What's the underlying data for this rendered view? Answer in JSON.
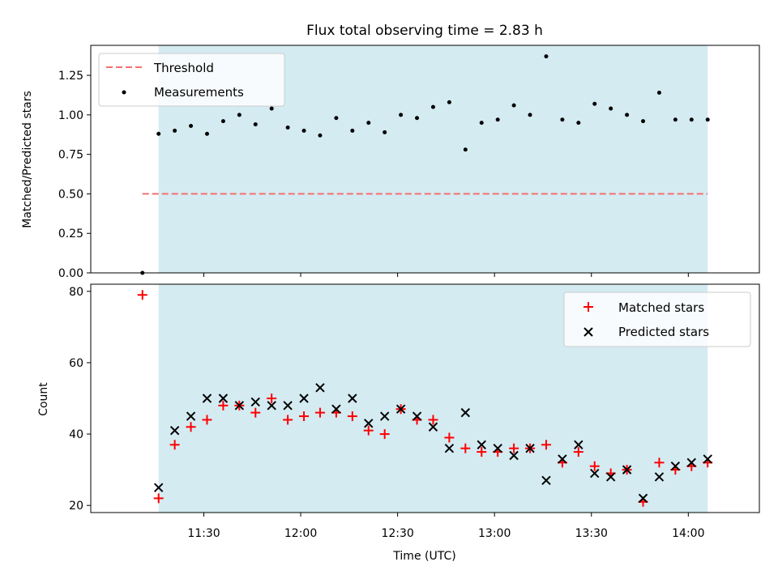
{
  "chart_data": [
    {
      "type": "scatter",
      "title": "Flux total observing time = 2.83 h",
      "xlabel": "",
      "ylabel": "Matched/Predicted stars",
      "ylim": [
        0,
        1.44
      ],
      "yticks": [
        "0.00",
        "0.25",
        "0.50",
        "0.75",
        "1.00",
        "1.25"
      ],
      "ytick_values": [
        0,
        0.25,
        0.5,
        0.75,
        1.0,
        1.25
      ],
      "shaded_region": {
        "start_min": 676,
        "end_min": 846,
        "color": "#d4ebf2"
      },
      "threshold": {
        "label": "Threshold",
        "value": 0.5,
        "x_range_min": [
          671,
          846
        ],
        "color": "#f47070"
      },
      "legend": {
        "position": "top-left",
        "entries": [
          "Threshold",
          "Measurements"
        ]
      },
      "series": [
        {
          "name": "Measurements",
          "marker": "dot",
          "x_min": [
            671,
            676,
            681,
            686,
            691,
            696,
            701,
            706,
            711,
            716,
            721,
            726,
            731,
            736,
            741,
            746,
            751,
            756,
            761,
            766,
            771,
            776,
            781,
            786,
            791,
            796,
            801,
            806,
            811,
            816,
            821,
            826,
            831,
            836,
            841,
            846
          ],
          "values": [
            0.0,
            0.88,
            0.9,
            0.93,
            0.88,
            0.96,
            1.0,
            0.94,
            1.04,
            0.92,
            0.9,
            0.87,
            0.98,
            0.9,
            0.95,
            0.89,
            1.0,
            0.98,
            1.05,
            1.08,
            0.78,
            0.95,
            0.97,
            1.06,
            1.0,
            1.37,
            0.97,
            0.95,
            1.07,
            1.04,
            1.0,
            0.96,
            1.14,
            0.97,
            0.97,
            0.97
          ]
        }
      ]
    },
    {
      "type": "scatter",
      "title": "",
      "xlabel": "Time (UTC)",
      "ylabel": "Count",
      "ylim": [
        18,
        82
      ],
      "xlim_min": [
        655,
        862
      ],
      "yticks": [
        "20",
        "40",
        "60",
        "80"
      ],
      "ytick_values": [
        20,
        40,
        60,
        80
      ],
      "xticks": [
        "11:30",
        "12:00",
        "12:30",
        "13:00",
        "13:30",
        "14:00"
      ],
      "xtick_values_min": [
        690,
        720,
        750,
        780,
        810,
        840
      ],
      "shaded_region": {
        "start_min": 676,
        "end_min": 846,
        "color": "#d4ebf2"
      },
      "legend": {
        "position": "top-right",
        "entries": [
          "Matched stars",
          "Predicted stars"
        ]
      },
      "series": [
        {
          "name": "Matched stars",
          "marker": "plus",
          "color": "#ff0000",
          "x_min": [
            671,
            676,
            681,
            686,
            691,
            696,
            701,
            706,
            711,
            716,
            721,
            726,
            731,
            736,
            741,
            746,
            751,
            756,
            761,
            766,
            771,
            776,
            781,
            786,
            791,
            796,
            801,
            806,
            811,
            816,
            821,
            826,
            831,
            836,
            841,
            846
          ],
          "values": [
            79,
            22,
            37,
            42,
            44,
            48,
            48,
            46,
            50,
            44,
            45,
            46,
            46,
            45,
            41,
            40,
            47,
            44,
            44,
            39,
            36,
            35,
            35,
            36,
            36,
            37,
            32,
            35,
            31,
            29,
            30,
            21,
            32,
            30,
            31,
            32
          ]
        },
        {
          "name": "Predicted stars",
          "marker": "x",
          "color": "#000000",
          "x_min": [
            676,
            681,
            686,
            691,
            696,
            701,
            706,
            711,
            716,
            721,
            726,
            731,
            736,
            741,
            746,
            751,
            756,
            761,
            766,
            771,
            776,
            781,
            786,
            791,
            796,
            801,
            806,
            811,
            816,
            821,
            826,
            831,
            836,
            841,
            846
          ],
          "values": [
            25,
            41,
            45,
            50,
            50,
            48,
            49,
            48,
            48,
            50,
            53,
            47,
            50,
            43,
            45,
            47,
            45,
            42,
            36,
            46,
            37,
            36,
            34,
            36,
            27,
            33,
            37,
            29,
            28,
            30,
            22,
            28,
            31,
            32,
            33
          ]
        }
      ]
    }
  ]
}
